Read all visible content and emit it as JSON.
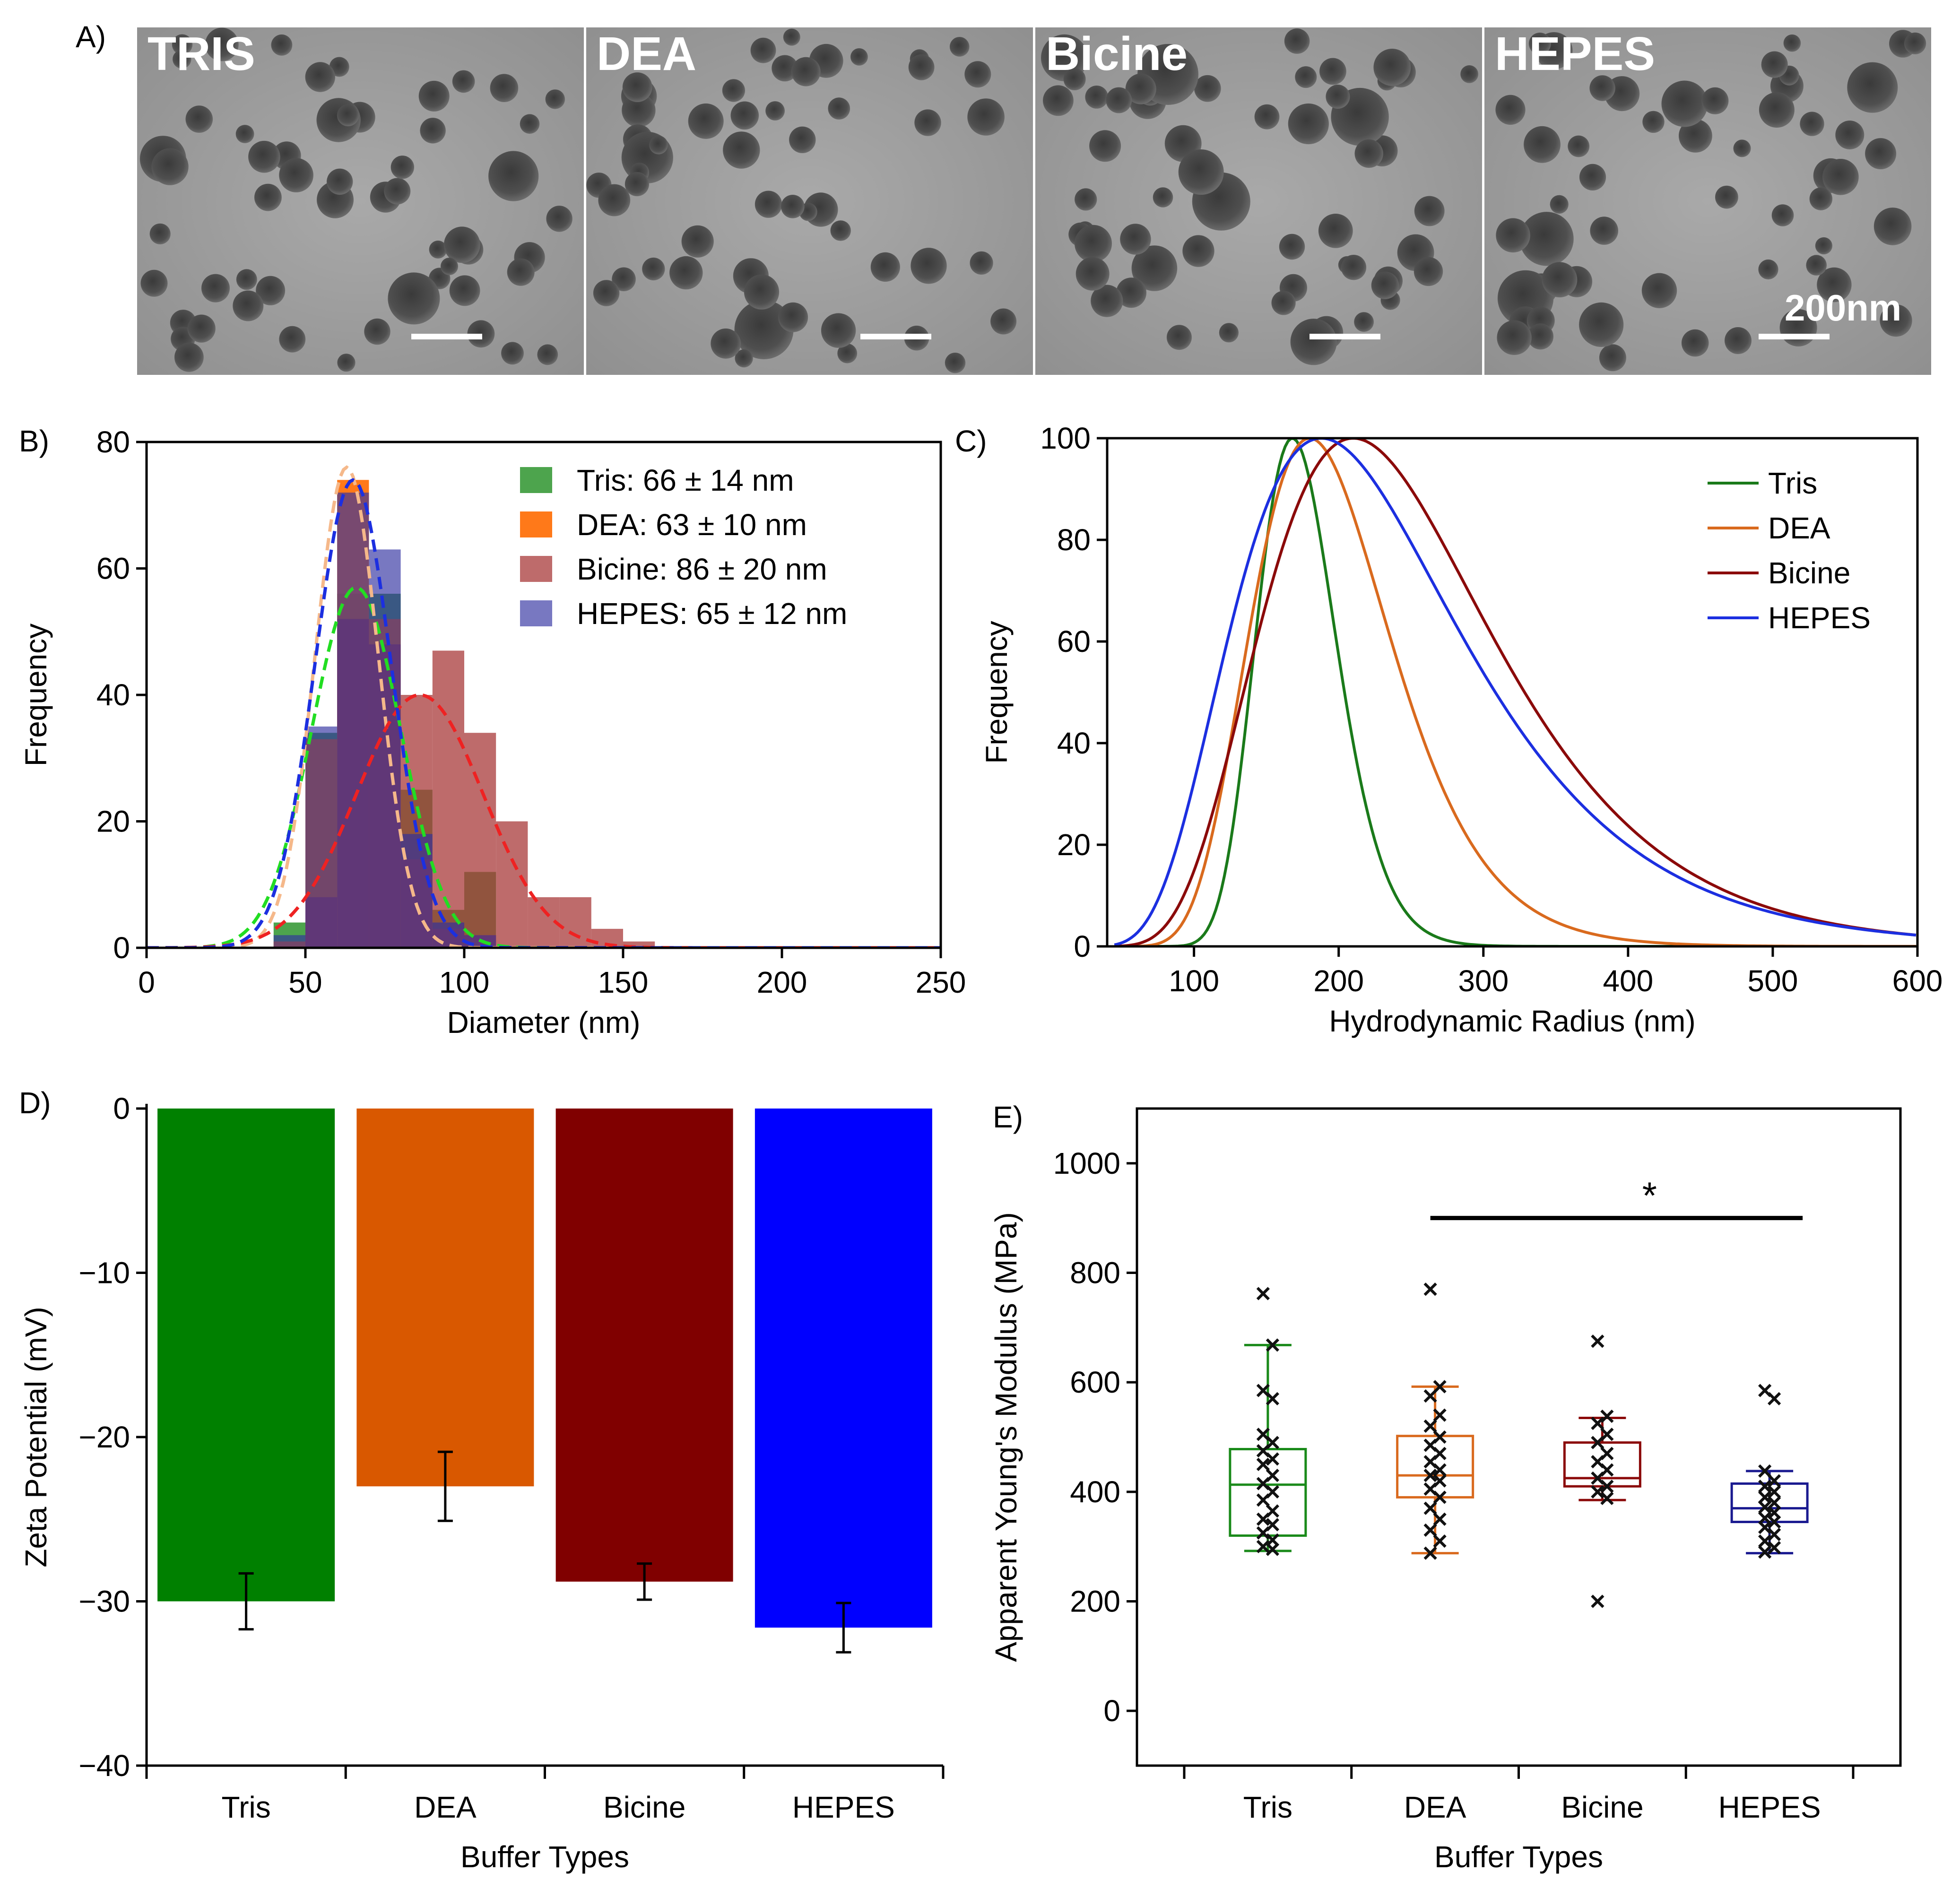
{
  "figure": {
    "panel_labels": [
      "A)",
      "B)",
      "C)",
      "D)",
      "E)"
    ],
    "tem": {
      "panels": [
        "TRIS",
        "DEA",
        "Bicine",
        "HEPES"
      ],
      "scale_bar_label": "200nm"
    }
  },
  "chart_data": [
    {
      "id": "B",
      "type": "histogram",
      "xlabel": "Diameter (nm)",
      "ylabel": "Frequency",
      "xlim": [
        0,
        250
      ],
      "ylim": [
        0,
        80
      ],
      "xticks": [
        0,
        50,
        100,
        150,
        200,
        250
      ],
      "yticks": [
        0,
        20,
        40,
        60,
        80
      ],
      "bin_edges": [
        40,
        50,
        60,
        70,
        80,
        90,
        100,
        110,
        120,
        130,
        140,
        150,
        160
      ],
      "series": [
        {
          "name": "Tris",
          "legend": "Tris: 66 ± 14 nm",
          "mean": 66,
          "sd": 14,
          "peak": 57,
          "counts": [
            4,
            34,
            56,
            56,
            25,
            6,
            12,
            0,
            0,
            0,
            0,
            0
          ],
          "color": "#3a9a3a",
          "fit_color": "#22dd22"
        },
        {
          "name": "DEA",
          "legend": "DEA: 63 ± 10 nm",
          "mean": 63,
          "sd": 10,
          "peak": 76,
          "counts": [
            1,
            33,
            74,
            52,
            14,
            3,
            2,
            0,
            0,
            0,
            0,
            0
          ],
          "color": "#ff6a00",
          "fit_color": "#f5b88a"
        },
        {
          "name": "Bicine",
          "legend": "Bicine: 86 ± 20 nm",
          "mean": 86,
          "sd": 20,
          "peak": 40,
          "counts": [
            0,
            8,
            52,
            48,
            40,
            47,
            34,
            20,
            8,
            8,
            3,
            1
          ],
          "color": "#a83a3a",
          "fit_color": "#ee2222"
        },
        {
          "name": "HEPES",
          "legend": "HEPES: 65 ± 12 nm",
          "mean": 65,
          "sd": 12,
          "peak": 74,
          "counts": [
            2,
            35,
            72,
            63,
            18,
            4,
            2,
            0,
            0,
            0,
            0,
            0
          ],
          "color": "#3030a0",
          "fit_color": "#1c2fe0"
        }
      ]
    },
    {
      "id": "C",
      "type": "line",
      "xlabel": "Hydrodynamic Radius (nm)",
      "ylabel": "Frequency",
      "xlim": [
        40,
        600
      ],
      "ylim": [
        0,
        100
      ],
      "xticks": [
        100,
        200,
        300,
        400,
        500,
        600
      ],
      "yticks": [
        0,
        20,
        40,
        60,
        80,
        100
      ],
      "series": [
        {
          "name": "Tris",
          "peak_x": 168,
          "sigma": 0.165,
          "color": "#1a7a1a"
        },
        {
          "name": "DEA",
          "peak_x": 180,
          "sigma": 0.27,
          "color": "#d96a1e"
        },
        {
          "name": "Bicine",
          "peak_x": 210,
          "sigma": 0.38,
          "color": "#8b0a0a"
        },
        {
          "name": "HEPES",
          "peak_x": 188,
          "sigma": 0.42,
          "color": "#1c2fe0"
        }
      ]
    },
    {
      "id": "D",
      "type": "bar",
      "xlabel": "Buffer Types",
      "ylabel": "Zeta Potential (mV)",
      "ylim": [
        -40,
        0
      ],
      "yticks": [
        0,
        -10,
        -20,
        -30,
        -40
      ],
      "ytick_labels": [
        "0",
        "−10",
        "−20",
        "−30",
        "−40"
      ],
      "categories": [
        "Tris",
        "DEA",
        "Bicine",
        "HEPES"
      ],
      "values": [
        -30.0,
        -23.0,
        -28.8,
        -31.6
      ],
      "errors": [
        1.7,
        2.1,
        1.1,
        1.5
      ],
      "colors": [
        "#008000",
        "#d95800",
        "#800000",
        "#0000ff"
      ]
    },
    {
      "id": "E",
      "type": "box",
      "xlabel": "Buffer Types",
      "ylabel": "Apparent Young's Modulus (MPa)",
      "ylim": [
        -100,
        1100
      ],
      "yticks": [
        0,
        200,
        400,
        600,
        800,
        1000
      ],
      "categories": [
        "Tris",
        "DEA",
        "Bicine",
        "HEPES"
      ],
      "significance": {
        "from": "DEA",
        "to": "HEPES",
        "label": "*"
      },
      "groups": [
        {
          "name": "Tris",
          "color": "#1a8a1a",
          "q1": 320,
          "median": 413,
          "q3": 478,
          "whisker_low": 292,
          "whisker_high": 668,
          "points": [
            762,
            668,
            585,
            570,
            505,
            490,
            475,
            460,
            450,
            430,
            415,
            400,
            385,
            365,
            350,
            340,
            325,
            312,
            300,
            295
          ]
        },
        {
          "name": "DEA",
          "color": "#d96a1e",
          "q1": 390,
          "median": 430,
          "q3": 502,
          "whisker_low": 288,
          "whisker_high": 592,
          "points": [
            770,
            592,
            575,
            540,
            520,
            500,
            485,
            470,
            455,
            440,
            430,
            420,
            405,
            390,
            370,
            350,
            330,
            310,
            288
          ]
        },
        {
          "name": "Bicine",
          "color": "#8b0a0a",
          "q1": 410,
          "median": 425,
          "q3": 490,
          "whisker_low": 385,
          "whisker_high": 535,
          "points": [
            675,
            538,
            525,
            505,
            490,
            470,
            455,
            440,
            425,
            410,
            400,
            388,
            200
          ]
        },
        {
          "name": "HEPES",
          "color": "#1a1a90",
          "q1": 345,
          "median": 370,
          "q3": 415,
          "whisker_low": 288,
          "whisker_high": 438,
          "points": [
            585,
            570,
            438,
            420,
            410,
            400,
            390,
            380,
            372,
            362,
            352,
            345,
            335,
            322,
            310,
            298,
            290
          ]
        }
      ]
    }
  ]
}
